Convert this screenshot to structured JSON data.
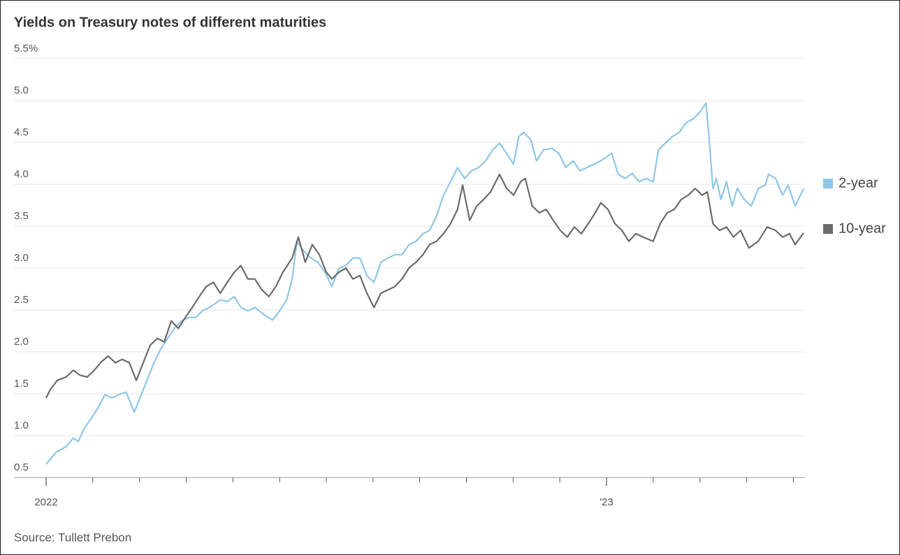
{
  "chart_data": {
    "type": "line",
    "title": "Yields on Treasury notes of different maturities",
    "source": "Source: Tullett Prebon",
    "xlim": [
      0,
      16.25
    ],
    "xticks": [
      {
        "value": 0,
        "label": "2022"
      },
      {
        "value": 12,
        "label": "'23"
      }
    ],
    "xminorticks": [
      1,
      2,
      3,
      4,
      5,
      6,
      7,
      8,
      9,
      10,
      11,
      13,
      14,
      15,
      16
    ],
    "ylim": [
      0.5,
      5.5
    ],
    "yticks": [
      0.5,
      {
        "value": 1,
        "label": "1.0"
      },
      1.5,
      {
        "value": 2,
        "label": "2.0"
      },
      2.5,
      {
        "value": 3,
        "label": "3.0"
      },
      3.5,
      {
        "value": 4,
        "label": "4.0"
      },
      4.5,
      {
        "value": 5,
        "label": "5.0"
      },
      {
        "value": 5.5,
        "label": "5.5%"
      }
    ],
    "grid": true,
    "legend": "right",
    "series": [
      {
        "name": "2-year",
        "color": "#8fc6e8",
        "x": [
          0,
          0.21,
          0.43,
          0.58,
          0.69,
          0.81,
          0.96,
          1.11,
          1.26,
          1.41,
          1.56,
          1.71,
          1.89,
          2.01,
          2.16,
          2.31,
          2.45,
          2.6,
          2.75,
          2.9,
          3.05,
          3.2,
          3.35,
          3.5,
          3.73,
          3.88,
          4.03,
          4.17,
          4.32,
          4.47,
          4.7,
          4.85,
          5.0,
          5.15,
          5.27,
          5.37,
          5.52,
          5.67,
          5.82,
          5.97,
          6.12,
          6.27,
          6.42,
          6.57,
          6.72,
          6.87,
          7.02,
          7.17,
          7.32,
          7.47,
          7.62,
          7.77,
          7.92,
          8.07,
          8.21,
          8.36,
          8.51,
          8.66,
          8.81,
          8.96,
          9.11,
          9.26,
          9.41,
          9.56,
          9.71,
          9.86,
          10.01,
          10.12,
          10.23,
          10.38,
          10.5,
          10.65,
          10.83,
          10.98,
          11.13,
          11.28,
          11.43,
          11.58,
          11.73,
          11.88,
          12.11,
          12.25,
          12.4,
          12.55,
          12.7,
          12.85,
          13.0,
          13.11,
          13.26,
          13.41,
          13.56,
          13.71,
          13.86,
          14.01,
          14.13,
          14.2,
          14.28,
          14.35,
          14.45,
          14.57,
          14.69,
          14.8,
          14.95,
          15.1,
          15.25,
          15.4,
          15.47,
          15.62,
          15.77,
          15.89,
          16.04,
          16.22
        ],
        "values": [
          0.66,
          0.8,
          0.87,
          0.97,
          0.93,
          1.08,
          1.2,
          1.33,
          1.49,
          1.45,
          1.49,
          1.52,
          1.28,
          1.45,
          1.66,
          1.87,
          2.03,
          2.16,
          2.28,
          2.37,
          2.41,
          2.41,
          2.49,
          2.53,
          2.62,
          2.6,
          2.66,
          2.53,
          2.49,
          2.53,
          2.43,
          2.38,
          2.49,
          2.62,
          2.87,
          3.32,
          3.2,
          3.12,
          3.07,
          2.95,
          2.78,
          3.0,
          3.03,
          3.12,
          3.12,
          2.91,
          2.83,
          3.07,
          3.12,
          3.16,
          3.16,
          3.28,
          3.32,
          3.41,
          3.45,
          3.62,
          3.87,
          4.03,
          4.2,
          4.07,
          4.16,
          4.2,
          4.28,
          4.41,
          4.49,
          4.37,
          4.24,
          4.57,
          4.62,
          4.53,
          4.28,
          4.41,
          4.43,
          4.37,
          4.2,
          4.28,
          4.16,
          4.2,
          4.24,
          4.28,
          4.37,
          4.12,
          4.07,
          4.13,
          4.03,
          4.07,
          4.03,
          4.41,
          4.49,
          4.57,
          4.62,
          4.74,
          4.78,
          4.87,
          4.97,
          4.53,
          3.95,
          4.07,
          3.82,
          4.03,
          3.74,
          3.95,
          3.82,
          3.74,
          3.95,
          3.99,
          4.12,
          4.07,
          3.87,
          3.99,
          3.74,
          3.95
        ]
      },
      {
        "name": "10-year",
        "color": "#6b6b6b",
        "x": [
          0,
          0.09,
          0.24,
          0.43,
          0.58,
          0.73,
          0.88,
          1.03,
          1.18,
          1.33,
          1.48,
          1.63,
          1.78,
          1.93,
          2.08,
          2.23,
          2.38,
          2.53,
          2.68,
          2.83,
          2.98,
          3.13,
          3.28,
          3.43,
          3.58,
          3.73,
          3.88,
          4.03,
          4.17,
          4.32,
          4.47,
          4.62,
          4.77,
          4.92,
          5.07,
          5.27,
          5.4,
          5.55,
          5.7,
          5.85,
          6.0,
          6.12,
          6.27,
          6.42,
          6.57,
          6.72,
          6.87,
          7.02,
          7.17,
          7.32,
          7.47,
          7.62,
          7.77,
          7.92,
          8.07,
          8.21,
          8.36,
          8.51,
          8.66,
          8.81,
          8.92,
          9.07,
          9.22,
          9.37,
          9.52,
          9.71,
          9.86,
          10.01,
          10.16,
          10.26,
          10.41,
          10.56,
          10.71,
          10.86,
          11.01,
          11.16,
          11.31,
          11.46,
          11.61,
          11.76,
          11.88,
          12.03,
          12.18,
          12.33,
          12.48,
          12.63,
          12.78,
          13.0,
          13.15,
          13.3,
          13.45,
          13.6,
          13.75,
          13.9,
          14.05,
          14.16,
          14.28,
          14.42,
          14.57,
          14.72,
          14.87,
          15.05,
          15.25,
          15.44,
          15.62,
          15.77,
          15.92,
          16.04,
          16.22
        ],
        "values": [
          1.45,
          1.55,
          1.66,
          1.7,
          1.78,
          1.72,
          1.7,
          1.78,
          1.88,
          1.95,
          1.87,
          1.91,
          1.87,
          1.66,
          1.87,
          2.08,
          2.16,
          2.12,
          2.37,
          2.28,
          2.41,
          2.53,
          2.66,
          2.78,
          2.83,
          2.7,
          2.83,
          2.95,
          3.03,
          2.87,
          2.87,
          2.74,
          2.66,
          2.78,
          2.95,
          3.12,
          3.37,
          3.07,
          3.28,
          3.16,
          2.95,
          2.87,
          2.95,
          3.0,
          2.87,
          2.91,
          2.7,
          2.53,
          2.7,
          2.74,
          2.78,
          2.87,
          3.0,
          3.07,
          3.16,
          3.28,
          3.32,
          3.41,
          3.53,
          3.7,
          3.99,
          3.57,
          3.74,
          3.82,
          3.91,
          4.12,
          3.95,
          3.87,
          4.03,
          4.07,
          3.74,
          3.66,
          3.7,
          3.57,
          3.45,
          3.37,
          3.49,
          3.41,
          3.53,
          3.66,
          3.78,
          3.7,
          3.53,
          3.45,
          3.32,
          3.41,
          3.37,
          3.32,
          3.53,
          3.66,
          3.7,
          3.82,
          3.87,
          3.95,
          3.87,
          3.91,
          3.53,
          3.45,
          3.49,
          3.37,
          3.45,
          3.24,
          3.32,
          3.49,
          3.45,
          3.37,
          3.41,
          3.28,
          3.42
        ]
      }
    ]
  }
}
